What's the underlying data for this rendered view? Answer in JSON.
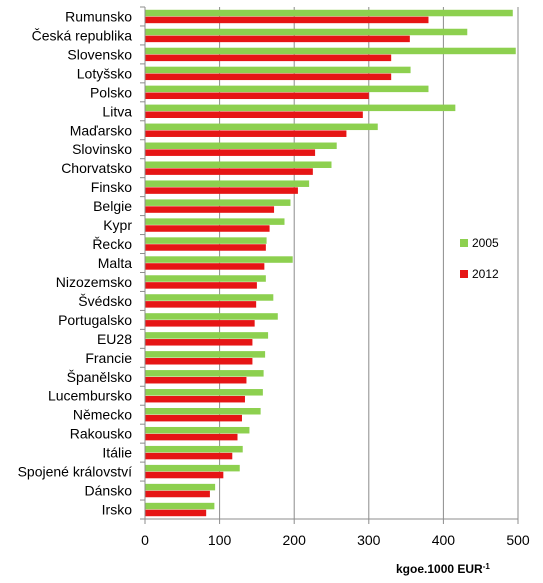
{
  "chart_data": {
    "type": "bar",
    "orientation": "horizontal",
    "categories": [
      "Rumunsko",
      "Česká republika",
      "Slovensko",
      "Lotyšsko",
      "Polsko",
      "Litva",
      "Maďarsko",
      "Slovinsko",
      "Chorvatsko",
      "Finsko",
      "Belgie",
      "Kypr",
      "Řecko",
      "Malta",
      "Nizozemsko",
      "Švédsko",
      "Portugalsko",
      "EU28",
      "Francie",
      "Španělsko",
      "Lucembursko",
      "Německo",
      "Rakousko",
      "Itálie",
      "Spojené království",
      "Dánsko",
      "Irsko"
    ],
    "series": [
      {
        "name": "2005",
        "color": "#8dd04f",
        "values": [
          493,
          432,
          497,
          356,
          380,
          416,
          312,
          257,
          250,
          220,
          195,
          187,
          163,
          198,
          162,
          172,
          178,
          165,
          161,
          159,
          158,
          155,
          140,
          131,
          127,
          94,
          93
        ]
      },
      {
        "name": "2012",
        "color": "#e61515",
        "values": [
          380,
          355,
          330,
          330,
          300,
          292,
          270,
          228,
          225,
          205,
          173,
          167,
          162,
          160,
          150,
          149,
          147,
          144,
          144,
          136,
          134,
          130,
          124,
          117,
          105,
          87,
          82
        ]
      }
    ],
    "xlim": [
      0,
      500
    ],
    "xticks": [
      0,
      100,
      200,
      300,
      400,
      500
    ],
    "xlabel": "kgoe.1000 EUR",
    "xlabel_superscript": "-1",
    "grid": "vertical",
    "legend_position": "right"
  }
}
